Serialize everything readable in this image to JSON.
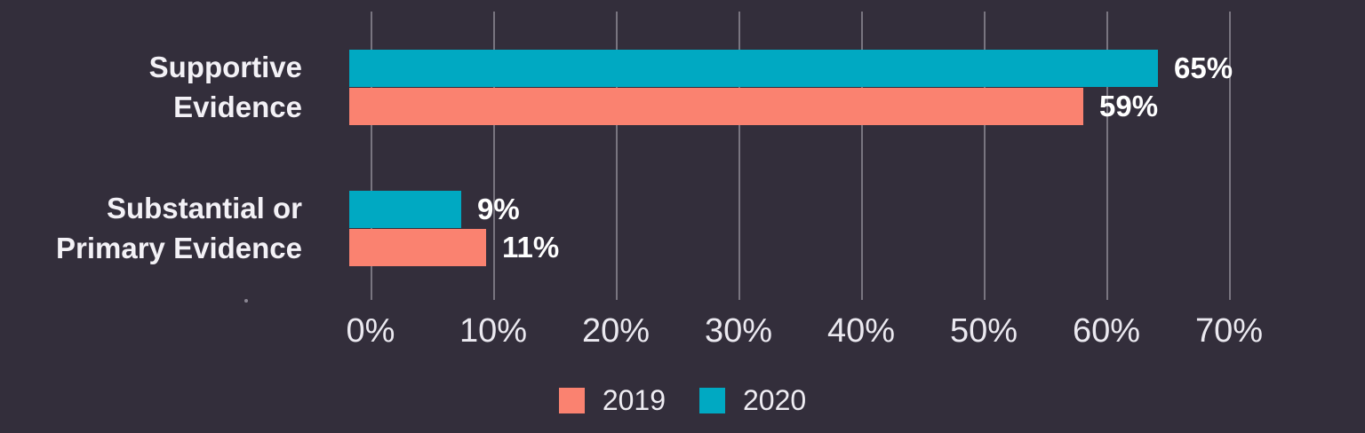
{
  "chart_data": {
    "type": "bar",
    "orientation": "horizontal",
    "categories": [
      {
        "label": "Supportive Evidence",
        "lines": [
          "Supportive",
          "Evidence"
        ]
      },
      {
        "label": "Substantial or Primary Evidence",
        "lines": [
          "Substantial or",
          "Primary Evidence"
        ]
      }
    ],
    "series": [
      {
        "name": "2019",
        "color": "#FA8270",
        "values": [
          59,
          11
        ]
      },
      {
        "name": "2020",
        "color": "#00A9C2",
        "values": [
          65,
          9
        ]
      }
    ],
    "value_labels": [
      [
        "59%",
        "11%"
      ],
      [
        "65%",
        "9%"
      ]
    ],
    "x_ticks": [
      "0%",
      "10%",
      "20%",
      "30%",
      "40%",
      "50%",
      "60%",
      "70%"
    ],
    "xlim": [
      0,
      70
    ],
    "grid": "vertical",
    "legend_position": "bottom",
    "colors": {
      "background": "#332E3B",
      "gridline": "rgba(236,233,242,0.38)",
      "category_text": "#F3F1F6",
      "value_text": "#FFFFFF",
      "axis_text": "#EBE9F0"
    }
  }
}
